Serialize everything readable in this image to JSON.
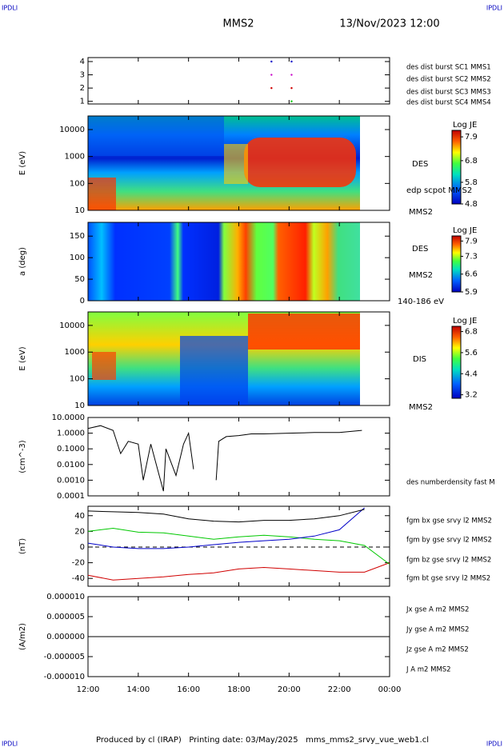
{
  "header": {
    "corner_left": "IPDLI",
    "corner_right": "IPDLI",
    "title": "MMS2",
    "date": "13/Nov/2023 12:00"
  },
  "footer": {
    "text": "Produced by cl (IRAP)   Printing date: 03/May/2025   mms_mms2_srvy_vue_web1.cl",
    "corner_left": "IPDLI",
    "corner_right": "IPDLI"
  },
  "chart_data": [
    {
      "type": "scatter",
      "ylim": [
        0.8,
        4.3
      ],
      "yticks": [
        1,
        2,
        3,
        4
      ],
      "series": [
        {
          "name": "des dist burst SC1 MMS1",
          "color": "#0000c8",
          "x": [
            19.3,
            20.1
          ],
          "values": [
            4,
            4
          ]
        },
        {
          "name": "des dist burst SC2 MMS2",
          "color": "#c800c8",
          "x": [
            19.3,
            20.1
          ],
          "values": [
            3,
            3
          ]
        },
        {
          "name": "des dist burst SC3 MMS3",
          "color": "#d00000",
          "x": [
            19.3,
            20.1
          ],
          "values": [
            2,
            2
          ]
        },
        {
          "name": "des dist burst SC4 MMS4",
          "color": "#00c800",
          "x": [
            20.1
          ],
          "values": [
            1
          ]
        }
      ]
    },
    {
      "type": "spectrogram",
      "ylabel": "E (eV)",
      "log_scale": true,
      "ylim": [
        10,
        32000
      ],
      "yticks": [
        10,
        100,
        1000,
        10000
      ],
      "labels": [
        "DES",
        "edp scpot MMS2",
        "MMS2"
      ],
      "colorbar": {
        "title": "Log JE",
        "lim": [
          4.8,
          8.2
        ],
        "ticks": [
          7.9,
          6.8,
          5.8,
          4.8
        ]
      }
    },
    {
      "type": "spectrogram",
      "ylabel": "a (deg)",
      "log_scale": false,
      "ylim": [
        0,
        182
      ],
      "yticks": [
        0,
        50,
        100,
        150
      ],
      "labels": [
        "DES",
        "MMS2",
        "140-186 eV"
      ],
      "colorbar": {
        "title": "Log JE",
        "lim": [
          5.9,
          8.1
        ],
        "ticks": [
          7.9,
          7.3,
          6.6,
          5.9
        ]
      }
    },
    {
      "type": "spectrogram",
      "ylabel": "E (eV)",
      "log_scale": true,
      "ylim": [
        10,
        32000
      ],
      "yticks": [
        10,
        100,
        1000,
        10000
      ],
      "labels": [
        "DIS",
        "MMS2"
      ],
      "colorbar": {
        "title": "Log JE",
        "lim": [
          3.0,
          7.1
        ],
        "ticks": [
          6.8,
          5.6,
          4.4,
          3.2
        ]
      }
    },
    {
      "type": "line",
      "ylabel": "(cm^-3)",
      "log_scale": true,
      "ylim": [
        0.0001,
        10
      ],
      "yticks": [
        {
          "value": 10,
          "label": "10.0000"
        },
        {
          "value": 1,
          "label": "1.0000"
        },
        {
          "value": 0.1,
          "label": "0.1000"
        },
        {
          "value": 0.01,
          "label": "0.0100"
        },
        {
          "value": 0.001,
          "label": "0.0010"
        },
        {
          "value": 0.0001,
          "label": "0.0001"
        }
      ],
      "x": [
        12,
        12.5,
        13,
        13.3,
        13.6,
        14,
        14.2,
        14.5,
        15,
        15.1,
        15.5,
        15.8,
        16,
        16.2,
        16.4,
        17.1,
        17.2,
        17.5,
        18,
        18.5,
        19,
        20,
        21,
        22,
        22.9
      ],
      "series": [
        {
          "name": "des numberdensity fast M",
          "color": "#000000",
          "values": [
            2,
            3,
            1.5,
            0.05,
            0.3,
            0.2,
            0.001,
            0.2,
            0.0002,
            0.1,
            0.002,
            0.2,
            1,
            0.005,
            null,
            0.001,
            0.3,
            0.6,
            0.7,
            0.9,
            0.9,
            1.0,
            1.1,
            1.1,
            1.5
          ]
        }
      ]
    },
    {
      "type": "line",
      "ylabel": "(nT)",
      "log_scale": false,
      "ylim": [
        -50,
        52
      ],
      "yticks": [
        -40,
        -20,
        0,
        20,
        40
      ],
      "hline": 0,
      "x": [
        12,
        13,
        14,
        15,
        16,
        17,
        18,
        19,
        20,
        21,
        22,
        23,
        24
      ],
      "series": [
        {
          "name": "fgm bx gse srvy l2 MMS2",
          "color": "#d00000",
          "values": [
            -36,
            -42,
            -40,
            -38,
            -35,
            -33,
            -28,
            -26,
            -28,
            -30,
            -32,
            -32,
            -20
          ]
        },
        {
          "name": "fgm by gse srvy l2 MMS2",
          "color": "#00c800",
          "values": [
            20,
            24,
            19,
            18,
            14,
            10,
            13,
            15,
            13,
            10,
            8,
            2,
            -22
          ]
        },
        {
          "name": "fgm bz gse srvy l2 MMS2",
          "color": "#0000c8",
          "values": [
            5,
            0,
            -2,
            -2,
            0,
            3,
            6,
            8,
            10,
            14,
            22,
            50,
            null
          ]
        },
        {
          "name": "fgm bt gse srvy l2 MMS2",
          "color": "#000000",
          "values": [
            46,
            45,
            44,
            42,
            36,
            33,
            32,
            34,
            34,
            36,
            40,
            48,
            null
          ]
        }
      ]
    },
    {
      "type": "line",
      "ylabel": "(A/m2)",
      "log_scale": false,
      "ylim": [
        -1e-05,
        1e-05
      ],
      "yticks": [
        {
          "value": 1e-05,
          "label": "0.000010"
        },
        {
          "value": 5e-06,
          "label": "0.000005"
        },
        {
          "value": 0,
          "label": "0.000000"
        },
        {
          "value": -5e-06,
          "label": "-0.000005"
        },
        {
          "value": -1e-05,
          "label": "-0.000010"
        }
      ],
      "x": [
        12,
        24
      ],
      "series": [
        {
          "name": "Jx gse A m2 MMS2",
          "color": "#d00000",
          "values": [
            0,
            0
          ]
        },
        {
          "name": "Jy gse A m2 MMS2",
          "color": "#00c800",
          "values": [
            0,
            0
          ]
        },
        {
          "name": "Jz gse A m2 MMS2",
          "color": "#0000c8",
          "values": [
            0,
            0
          ]
        },
        {
          "name": "J A m2 MMS2",
          "color": "#000000",
          "values": [
            0,
            0
          ]
        }
      ],
      "xlim": [
        12,
        24
      ],
      "xticks": [
        {
          "value": 12,
          "label": "12:00"
        },
        {
          "value": 14,
          "label": "14:00"
        },
        {
          "value": 16,
          "label": "16:00"
        },
        {
          "value": 18,
          "label": "18:00"
        },
        {
          "value": 20,
          "label": "20:00"
        },
        {
          "value": 22,
          "label": "22:00"
        },
        {
          "value": 24,
          "label": "00:00"
        }
      ]
    }
  ]
}
